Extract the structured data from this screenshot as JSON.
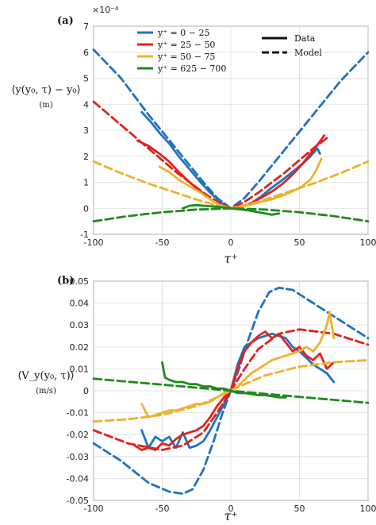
{
  "figure": {
    "panels": [
      {
        "panel_label": "(a)",
        "ylabel": "⟨y(y₀, τ) − y₀⟩",
        "yunit": "(m)",
        "xlabel": "τ⁺",
        "exponent_label": "×10⁻⁴",
        "legend": {
          "series_labels": [
            "y⁺ = 0 − 25",
            "y⁺ = 25 − 50",
            "y⁺ = 50 − 75",
            "y⁺ = 625 − 700"
          ],
          "style_labels": [
            "Data",
            "Model"
          ]
        }
      },
      {
        "panel_label": "(b)",
        "ylabel": "⟨V_y(y₀, τ)⟩",
        "yunit": "(m/s)",
        "xlabel": "τ⁺"
      }
    ]
  },
  "colors": {
    "blue": "#1f72bd",
    "red": "#e3211c",
    "yellow": "#ecb22e",
    "green": "#1e8a1e",
    "axis": "#222222"
  },
  "chart_data": [
    {
      "type": "line",
      "xlim": [
        -100,
        100
      ],
      "ylim": [
        -1,
        7
      ],
      "y_scale_note": "×10^-4",
      "x_ticks": [
        -100,
        -50,
        0,
        50,
        100
      ],
      "y_ticks": [
        -1,
        0,
        1,
        2,
        3,
        4,
        5,
        6,
        7
      ],
      "x_tick_labels": [
        "-100",
        "-50",
        "0",
        "50",
        "100"
      ],
      "y_tick_labels": [
        "-1",
        "0",
        "1",
        "2",
        "3",
        "4",
        "5",
        "6",
        "7"
      ],
      "grid": true,
      "legend_position": "top",
      "series": [
        {
          "name": "y⁺ = 0 − 25",
          "color": "blue",
          "style": "data",
          "x": [
            -65,
            -58,
            -52,
            -45,
            -38,
            -30,
            -22,
            -15,
            -8,
            0,
            8,
            15,
            22,
            30,
            38,
            45,
            52,
            58,
            63,
            65
          ],
          "y": [
            3.7,
            3.3,
            2.9,
            2.5,
            2.0,
            1.5,
            1.0,
            0.6,
            0.25,
            0.0,
            0.05,
            0.2,
            0.45,
            0.8,
            1.1,
            1.4,
            1.7,
            2.0,
            2.3,
            2.1
          ]
        },
        {
          "name": "y⁺ = 0 − 25",
          "color": "blue",
          "style": "model",
          "x": [
            -100,
            -80,
            -60,
            -40,
            -20,
            -10,
            0,
            10,
            20,
            40,
            60,
            80,
            100
          ],
          "y": [
            6.1,
            5.0,
            3.6,
            2.3,
            1.0,
            0.4,
            0.0,
            0.4,
            1.0,
            2.3,
            3.6,
            4.9,
            6.0
          ]
        },
        {
          "name": "y⁺ = 25 − 50",
          "color": "red",
          "style": "data",
          "x": [
            -68,
            -60,
            -52,
            -45,
            -38,
            -30,
            -22,
            -15,
            -8,
            0,
            8,
            15,
            22,
            30,
            38,
            45,
            52,
            58,
            64,
            68
          ],
          "y": [
            2.6,
            2.4,
            2.1,
            1.8,
            1.4,
            1.0,
            0.65,
            0.35,
            0.12,
            0.0,
            0.05,
            0.2,
            0.4,
            0.65,
            0.95,
            1.3,
            1.7,
            2.1,
            2.5,
            2.8
          ]
        },
        {
          "name": "y⁺ = 25 − 50",
          "color": "red",
          "style": "model",
          "x": [
            -100,
            -80,
            -60,
            -40,
            -20,
            -10,
            0,
            10,
            20,
            40,
            60,
            70
          ],
          "y": [
            4.1,
            3.2,
            2.3,
            1.4,
            0.6,
            0.25,
            0.0,
            0.25,
            0.6,
            1.4,
            2.3,
            2.7
          ]
        },
        {
          "name": "y⁺ = 50 − 75",
          "color": "yellow",
          "style": "data",
          "x": [
            -52,
            -45,
            -38,
            -30,
            -22,
            -15,
            -8,
            0,
            8,
            15,
            22,
            30,
            38,
            45,
            52,
            58,
            62,
            66
          ],
          "y": [
            1.6,
            1.4,
            1.1,
            0.85,
            0.6,
            0.35,
            0.12,
            0.0,
            0.05,
            0.15,
            0.25,
            0.35,
            0.5,
            0.65,
            0.85,
            1.1,
            1.45,
            1.9
          ]
        },
        {
          "name": "y⁺ = 50 − 75",
          "color": "yellow",
          "style": "model",
          "x": [
            -100,
            -80,
            -60,
            -40,
            -20,
            0,
            20,
            40,
            60,
            80,
            100
          ],
          "y": [
            1.8,
            1.35,
            0.95,
            0.6,
            0.25,
            0.0,
            0.25,
            0.6,
            0.95,
            1.35,
            1.8
          ]
        },
        {
          "name": "y⁺ = 625 − 700",
          "color": "green",
          "style": "data",
          "x": [
            -35,
            -30,
            -25,
            -20,
            -15,
            -10,
            -5,
            0,
            5,
            10,
            15,
            20,
            25,
            30,
            35
          ],
          "y": [
            0.0,
            0.1,
            0.12,
            0.1,
            0.08,
            0.06,
            0.03,
            0.0,
            -0.03,
            -0.06,
            -0.1,
            -0.15,
            -0.2,
            -0.25,
            -0.2
          ]
        },
        {
          "name": "y⁺ = 625 − 700",
          "color": "green",
          "style": "model",
          "x": [
            -100,
            -75,
            -50,
            -25,
            0,
            25,
            50,
            75,
            100
          ],
          "y": [
            -0.5,
            -0.3,
            -0.15,
            -0.05,
            0.0,
            -0.05,
            -0.15,
            -0.3,
            -0.5
          ]
        }
      ]
    },
    {
      "type": "line",
      "xlim": [
        -100,
        100
      ],
      "ylim": [
        -0.05,
        0.05
      ],
      "x_ticks": [
        -100,
        -50,
        0,
        50,
        100
      ],
      "y_ticks": [
        -0.05,
        -0.04,
        -0.03,
        -0.02,
        -0.01,
        0,
        0.01,
        0.02,
        0.03,
        0.04,
        0.05
      ],
      "x_tick_labels": [
        "-100",
        "-50",
        "0",
        "50",
        "100"
      ],
      "y_tick_labels": [
        "-0.05",
        "-0.04",
        "-0.03",
        "-0.02",
        "-0.01",
        "0",
        "0.01",
        "0.02",
        "0.03",
        "0.04",
        "0.05"
      ],
      "grid": true,
      "series": [
        {
          "name": "y⁺ = 0 − 25",
          "color": "blue",
          "style": "data",
          "x": [
            -65,
            -60,
            -55,
            -50,
            -45,
            -40,
            -35,
            -30,
            -25,
            -20,
            -15,
            -10,
            -5,
            0,
            5,
            10,
            15,
            20,
            25,
            30,
            35,
            40,
            45,
            50,
            55,
            60,
            65,
            70,
            75
          ],
          "y": [
            -0.018,
            -0.026,
            -0.021,
            -0.023,
            -0.021,
            -0.026,
            -0.019,
            -0.026,
            -0.025,
            -0.023,
            -0.018,
            -0.012,
            -0.006,
            0.0,
            0.012,
            0.02,
            0.022,
            0.024,
            0.025,
            0.026,
            0.025,
            0.024,
            0.02,
            0.018,
            0.015,
            0.012,
            0.01,
            0.008,
            0.004
          ]
        },
        {
          "name": "y⁺ = 0 − 25",
          "color": "blue",
          "style": "model",
          "x": [
            -100,
            -80,
            -60,
            -45,
            -35,
            -28,
            -20,
            -12,
            -6,
            0,
            6,
            12,
            20,
            28,
            35,
            45,
            60,
            80,
            100
          ],
          "y": [
            -0.024,
            -0.032,
            -0.042,
            -0.046,
            -0.047,
            -0.045,
            -0.036,
            -0.022,
            -0.01,
            0.0,
            0.01,
            0.022,
            0.036,
            0.045,
            0.047,
            0.046,
            0.04,
            0.032,
            0.024
          ]
        },
        {
          "name": "y⁺ = 25 − 50",
          "color": "red",
          "style": "data",
          "x": [
            -70,
            -65,
            -60,
            -55,
            -50,
            -45,
            -40,
            -35,
            -30,
            -25,
            -20,
            -15,
            -10,
            -5,
            0,
            5,
            10,
            15,
            20,
            25,
            30,
            35,
            40,
            45,
            50,
            55,
            60,
            65,
            70,
            75
          ],
          "y": [
            -0.025,
            -0.027,
            -0.026,
            -0.027,
            -0.024,
            -0.025,
            -0.022,
            -0.02,
            -0.019,
            -0.018,
            -0.016,
            -0.012,
            -0.007,
            -0.003,
            0.0,
            0.01,
            0.018,
            0.022,
            0.025,
            0.027,
            0.024,
            0.026,
            0.022,
            0.018,
            0.02,
            0.016,
            0.014,
            0.017,
            0.01,
            0.013
          ]
        },
        {
          "name": "y⁺ = 25 − 50",
          "color": "red",
          "style": "model",
          "x": [
            -100,
            -75,
            -50,
            -35,
            -20,
            -10,
            0,
            10,
            20,
            35,
            50,
            75,
            100
          ],
          "y": [
            -0.018,
            -0.024,
            -0.027,
            -0.025,
            -0.019,
            -0.01,
            0.0,
            0.01,
            0.019,
            0.026,
            0.028,
            0.026,
            0.021
          ]
        },
        {
          "name": "y⁺ = 50 − 75",
          "color": "yellow",
          "style": "data",
          "x": [
            -65,
            -60,
            -55,
            -50,
            -45,
            -40,
            -35,
            -30,
            -25,
            -20,
            -15,
            -10,
            -5,
            0,
            5,
            10,
            15,
            20,
            25,
            30,
            35,
            40,
            45,
            50,
            55,
            60,
            65,
            70,
            72,
            75
          ],
          "y": [
            -0.006,
            -0.012,
            -0.011,
            -0.01,
            -0.009,
            -0.009,
            -0.008,
            -0.007,
            -0.006,
            -0.006,
            -0.005,
            -0.003,
            -0.001,
            0.0,
            0.002,
            0.005,
            0.008,
            0.01,
            0.012,
            0.014,
            0.015,
            0.016,
            0.017,
            0.018,
            0.02,
            0.018,
            0.022,
            0.03,
            0.036,
            0.024
          ]
        },
        {
          "name": "y⁺ = 50 − 75",
          "color": "yellow",
          "style": "model",
          "x": [
            -100,
            -75,
            -50,
            -25,
            -10,
            0,
            10,
            25,
            50,
            75,
            100
          ],
          "y": [
            -0.014,
            -0.013,
            -0.011,
            -0.007,
            -0.003,
            0.0,
            0.003,
            0.007,
            0.011,
            0.013,
            0.014
          ]
        },
        {
          "name": "y⁺ = 625 − 700",
          "color": "green",
          "style": "data",
          "x": [
            -50,
            -48,
            -45,
            -40,
            -35,
            -30,
            -25,
            -20,
            -15,
            -10,
            -5,
            0,
            5,
            10,
            15,
            20,
            25,
            30,
            35,
            40
          ],
          "y": [
            0.013,
            0.006,
            0.005,
            0.004,
            0.004,
            0.003,
            0.003,
            0.002,
            0.002,
            0.001,
            0.001,
            0.0,
            -0.001,
            -0.001,
            -0.0015,
            -0.002,
            -0.002,
            -0.0025,
            -0.003,
            -0.003
          ]
        },
        {
          "name": "y⁺ = 625 − 700",
          "color": "green",
          "style": "model",
          "x": [
            -100,
            -50,
            0,
            50,
            100
          ],
          "y": [
            0.0055,
            0.0028,
            0.0,
            -0.0028,
            -0.0055
          ]
        }
      ]
    }
  ]
}
